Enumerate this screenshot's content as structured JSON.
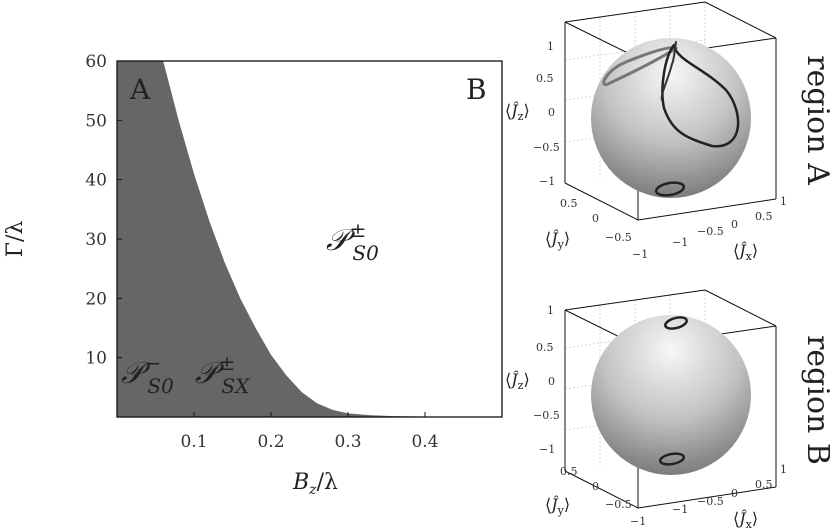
{
  "chart_data": [
    {
      "type": "area",
      "xlabel": "B_z/λ",
      "ylabel": "Γ/λ",
      "xlim": [
        0.0,
        0.5
      ],
      "ylim": [
        0,
        60
      ],
      "x_ticks": [
        "0.1",
        "0.2",
        "0.3",
        "0.4"
      ],
      "y_ticks": [
        "10",
        "20",
        "30",
        "40",
        "50",
        "60"
      ],
      "fill_color": "#666666",
      "series": [
        {
          "x": [
            0.0,
            0.06,
            0.08,
            0.1,
            0.12,
            0.14,
            0.16,
            0.18,
            0.2,
            0.22,
            0.24,
            0.26,
            0.28,
            0.3,
            0.33,
            0.36,
            0.4,
            0.45,
            0.5
          ],
          "y": [
            60,
            60,
            50,
            41,
            33,
            26,
            20,
            15,
            10.5,
            7,
            4.2,
            2.3,
            1.2,
            0.6,
            0.3,
            0.15,
            0.08,
            0.05,
            0.05
          ]
        }
      ],
      "annotations": {
        "corner_a": "A",
        "corner_b": "B",
        "white_region": "P^±_S0",
        "gray_region_1": "P^−_S0",
        "gray_region_2": "P^±_SX"
      }
    },
    {
      "type": "scatter",
      "title": "region A",
      "axes": [
        "⟨Ĵ_x⟩",
        "⟨Ĵ_y⟩",
        "⟨Ĵ_z⟩"
      ],
      "x_ticks": [
        "1",
        "0.5",
        "0",
        "−0.5",
        "−1"
      ],
      "y_ticks": [
        "0.5",
        "0",
        "−0.5",
        "−1"
      ],
      "z_ticks": [
        "1",
        "0.5",
        "0",
        "−0.5",
        "−1"
      ]
    },
    {
      "type": "scatter",
      "title": "region B",
      "axes": [
        "⟨Ĵ_x⟩",
        "⟨Ĵ_y⟩",
        "⟨Ĵ_z⟩"
      ],
      "x_ticks": [
        "1",
        "0.5",
        "0",
        "−0.5",
        "−1"
      ],
      "y_ticks": [
        "0.5",
        "0",
        "−0.5",
        "−1"
      ],
      "z_ticks": [
        "1",
        "0.5",
        "0",
        "−0.5",
        "−1"
      ]
    }
  ]
}
